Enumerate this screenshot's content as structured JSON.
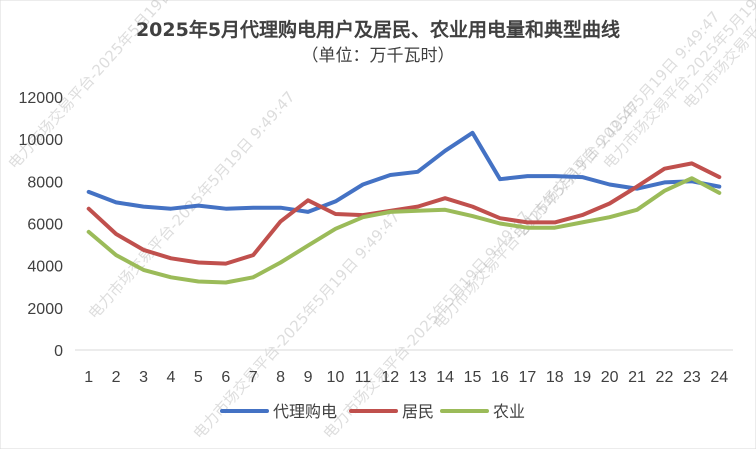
{
  "chart_data": {
    "type": "line",
    "title": "2025年5月代理购电用户及居民、农业用电量和典型曲线",
    "subtitle": "（单位：万千瓦时）",
    "categories": [
      "1",
      "2",
      "3",
      "4",
      "5",
      "6",
      "7",
      "8",
      "9",
      "10",
      "11",
      "12",
      "13",
      "14",
      "15",
      "16",
      "17",
      "18",
      "19",
      "20",
      "21",
      "22",
      "23",
      "24"
    ],
    "yticks": [
      "0",
      "2000",
      "4000",
      "6000",
      "8000",
      "10000",
      "12000"
    ],
    "ylim": [
      0,
      12000
    ],
    "grid": false,
    "legend_position": "bottom",
    "series": [
      {
        "name": "代理购电",
        "color": "#4472C4",
        "values": [
          7500,
          7000,
          6800,
          6700,
          6850,
          6700,
          6750,
          6750,
          6550,
          7050,
          7850,
          8300,
          8450,
          9450,
          10300,
          8100,
          8250,
          8250,
          8200,
          7850,
          7650,
          7950,
          8000,
          7750
        ]
      },
      {
        "name": "居民",
        "color": "#C0504D",
        "values": [
          6700,
          5500,
          4750,
          4350,
          4150,
          4100,
          4500,
          6100,
          7100,
          6450,
          6400,
          6600,
          6800,
          7200,
          6800,
          6250,
          6050,
          6050,
          6400,
          6950,
          7750,
          8600,
          8850,
          8200
        ]
      },
      {
        "name": "农业",
        "color": "#9BBB59",
        "values": [
          5600,
          4500,
          3800,
          3450,
          3250,
          3200,
          3450,
          4150,
          4950,
          5750,
          6300,
          6550,
          6600,
          6650,
          6350,
          6000,
          5800,
          5800,
          6050,
          6300,
          6650,
          7550,
          8150,
          7450
        ]
      }
    ],
    "watermark": "电力市场交易平台-2025年5月19日 9:49:47"
  }
}
